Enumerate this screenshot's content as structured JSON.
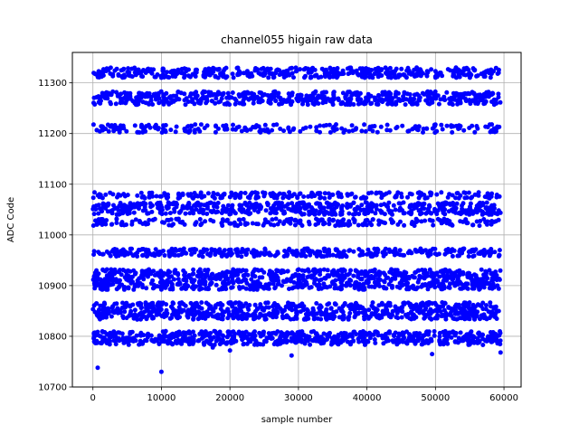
{
  "chart_data": {
    "type": "scatter",
    "title": "channel055 higain raw data",
    "xlabel": "sample number",
    "ylabel": "ADC Code",
    "xlim": [
      -3000,
      62500
    ],
    "ylim": [
      10700,
      11360
    ],
    "x_ticks": [
      0,
      10000,
      20000,
      30000,
      40000,
      50000,
      60000
    ],
    "y_ticks": [
      10700,
      10800,
      10900,
      11000,
      11100,
      11200,
      11300
    ],
    "x_tick_labels": [
      "0",
      "10000",
      "20000",
      "30000",
      "40000",
      "50000",
      "60000"
    ],
    "y_tick_labels": [
      "10700",
      "10800",
      "10900",
      "11000",
      "11100",
      "11200",
      "11300"
    ],
    "grid": true,
    "marker_color": "#0000ff",
    "x_extent": [
      0,
      59500
    ],
    "bands": [
      {
        "center": 11320,
        "half_width": 10
      },
      {
        "center": 11270,
        "half_width": 13
      },
      {
        "center": 11052,
        "half_width": 12
      },
      {
        "center": 10965,
        "half_width": 8
      },
      {
        "center": 10912,
        "half_width": 20
      },
      {
        "center": 10850,
        "half_width": 17
      },
      {
        "center": 10800,
        "half_width": 10
      }
    ],
    "sparse_rows": [
      {
        "center": 11210,
        "spread": 8
      },
      {
        "center": 11078,
        "spread": 6
      },
      {
        "center": 11025,
        "spread": 7
      },
      {
        "center": 10788,
        "spread": 5
      }
    ],
    "outliers": [
      {
        "x": 700,
        "y": 10738
      },
      {
        "x": 10000,
        "y": 10730
      },
      {
        "x": 20000,
        "y": 10772
      },
      {
        "x": 29000,
        "y": 10762
      },
      {
        "x": 49500,
        "y": 10765
      },
      {
        "x": 59500,
        "y": 10768
      },
      {
        "x": 17500,
        "y": 10778
      }
    ]
  }
}
